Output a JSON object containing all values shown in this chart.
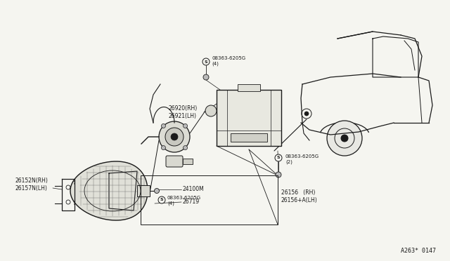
{
  "bg_color": "#f5f5f0",
  "diagram_code": "A263* 0147",
  "dark": "#1a1a1a",
  "gray": "#666666",
  "fs_label": 5.5,
  "fs_small": 5.0,
  "parts": {
    "screw_top_label": "08363-6205G\n(4)",
    "part_26920": "26920(RH)\n26921(LH)",
    "part_24100M": "24100M",
    "part_26719": "26719",
    "screw_bottom_label": "08363-6205G\n(4)",
    "part_26156": "26156   (RH)\n26156+A(LH)",
    "part_26152": "26152N(RH)\n26157N(LH)",
    "screw_right_label": "08363-6205G\n(2)"
  }
}
